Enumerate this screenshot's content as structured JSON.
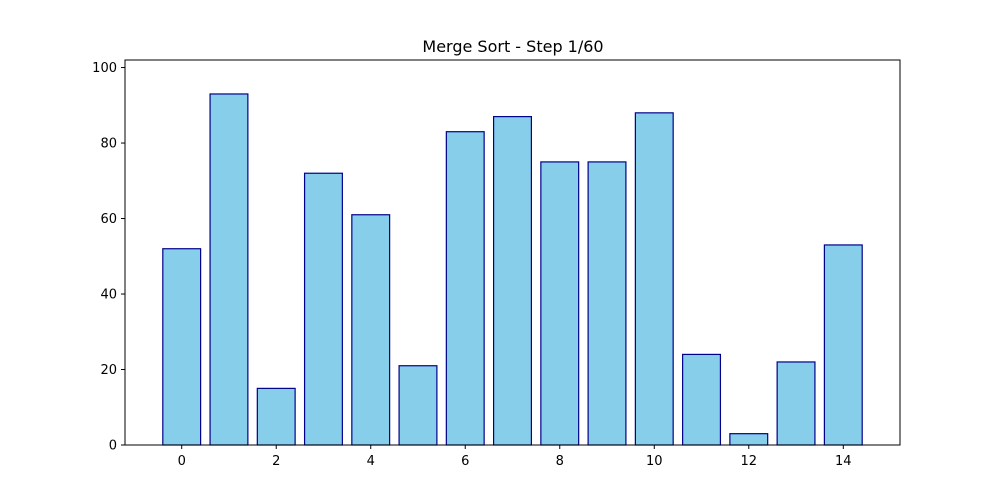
{
  "chart_data": {
    "type": "bar",
    "title": "Merge Sort - Step 1/60",
    "xlabel": "",
    "ylabel": "",
    "categories": [
      0,
      1,
      2,
      3,
      4,
      5,
      6,
      7,
      8,
      9,
      10,
      11,
      12,
      13,
      14
    ],
    "values": [
      52,
      93,
      15,
      72,
      61,
      21,
      83,
      87,
      75,
      75,
      88,
      24,
      3,
      22,
      53
    ],
    "xlim": [
      -1.2,
      15.2
    ],
    "ylim": [
      0,
      102
    ],
    "xticks": [
      0,
      2,
      4,
      6,
      8,
      10,
      12,
      14
    ],
    "yticks": [
      0,
      20,
      40,
      60,
      80,
      100
    ],
    "grid": false,
    "colors": {
      "bar_fill": "#87CEEB",
      "bar_edge": "#00008B",
      "axis": "#000000"
    }
  }
}
